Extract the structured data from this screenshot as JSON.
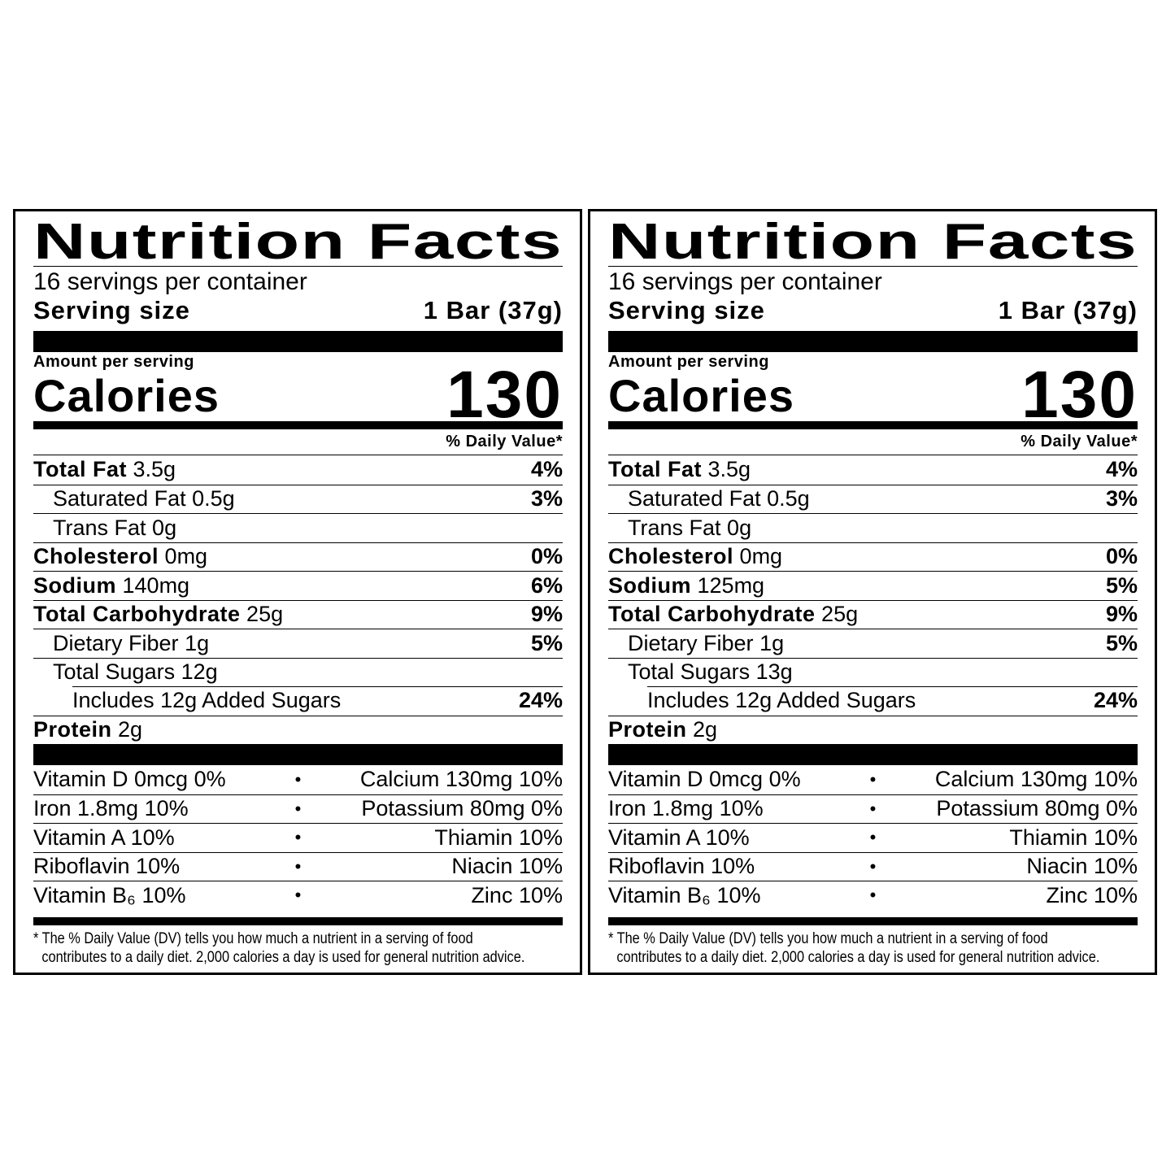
{
  "labels": [
    {
      "title": "Nutrition Facts",
      "servings": "16 servings per container",
      "serving_size_label": "Serving size",
      "serving_size_value": "1 Bar (37g)",
      "amount_per_serving": "Amount per serving",
      "calories_label": "Calories",
      "calories": "130",
      "dv_header": "% Daily Value*",
      "nutrients": [
        {
          "name": "Total Fat",
          "amount": "3.5g",
          "dv": "4%"
        },
        {
          "name": "Saturated Fat",
          "amount": "0.5g",
          "dv": "3%"
        },
        {
          "name": "Trans Fat",
          "amount": "0g"
        },
        {
          "name": "Cholesterol",
          "amount": "0mg",
          "dv": "0%"
        },
        {
          "name": "Sodium",
          "amount": "140mg",
          "dv": "6%"
        },
        {
          "name": "Total Carbohydrate",
          "amount": "25g",
          "dv": "9%"
        },
        {
          "name": "Dietary Fiber",
          "amount": "1g",
          "dv": "5%"
        },
        {
          "name": "Total Sugars",
          "amount": "12g"
        },
        {
          "name": "Includes 12g Added Sugars",
          "dv": "24%"
        },
        {
          "name": "Protein",
          "amount": "2g"
        }
      ],
      "vitamins": [
        {
          "left": "Vitamin D 0mcg 0%",
          "right": "Calcium 130mg 10%"
        },
        {
          "left": "Iron 1.8mg 10%",
          "right": "Potassium 80mg 0%"
        },
        {
          "left": "Vitamin A 10%",
          "right": "Thiamin 10%"
        },
        {
          "left": "Riboflavin 10%",
          "right": "Niacin 10%"
        },
        {
          "left": "Vitamin B₆ 10%",
          "right": "Zinc 10%"
        }
      ],
      "footnote": [
        "* The % Daily Value (DV) tells you how much a nutrient in a serving of food",
        "contributes to a daily diet. 2,000 calories a day is used for general nutrition advice."
      ]
    },
    {
      "title": "Nutrition Facts",
      "servings": "16 servings per container",
      "serving_size_label": "Serving size",
      "serving_size_value": "1 Bar (37g)",
      "amount_per_serving": "Amount per serving",
      "calories_label": "Calories",
      "calories": "130",
      "dv_header": "% Daily Value*",
      "nutrients": [
        {
          "name": "Total Fat",
          "amount": "3.5g",
          "dv": "4%"
        },
        {
          "name": "Saturated Fat",
          "amount": "0.5g",
          "dv": "3%"
        },
        {
          "name": "Trans Fat",
          "amount": "0g"
        },
        {
          "name": "Cholesterol",
          "amount": "0mg",
          "dv": "0%"
        },
        {
          "name": "Sodium",
          "amount": "125mg",
          "dv": "5%"
        },
        {
          "name": "Total Carbohydrate",
          "amount": "25g",
          "dv": "9%"
        },
        {
          "name": "Dietary Fiber",
          "amount": "1g",
          "dv": "5%"
        },
        {
          "name": "Total Sugars",
          "amount": "13g"
        },
        {
          "name": "Includes 12g Added Sugars",
          "dv": "24%"
        },
        {
          "name": "Protein",
          "amount": "2g"
        }
      ],
      "vitamins": [
        {
          "left": "Vitamin D 0mcg 0%",
          "right": "Calcium 130mg 10%"
        },
        {
          "left": "Iron 1.8mg 10%",
          "right": "Potassium 80mg 0%"
        },
        {
          "left": "Vitamin A 10%",
          "right": "Thiamin 10%"
        },
        {
          "left": "Riboflavin 10%",
          "right": "Niacin 10%"
        },
        {
          "left": "Vitamin B₆ 10%",
          "right": "Zinc 10%"
        }
      ],
      "footnote": [
        "* The % Daily Value (DV) tells you how much a nutrient in a serving of food",
        "contributes to a daily diet. 2,000 calories a day is used for general nutrition advice."
      ]
    }
  ]
}
